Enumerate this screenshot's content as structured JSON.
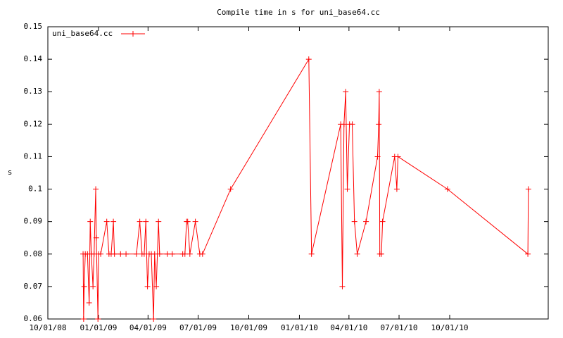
{
  "chart_data": {
    "type": "line",
    "title": "Compile time in s for uni_base64.cc",
    "ylabel": "s",
    "x": [
      "2008-12-04",
      "2008-12-05",
      "2008-12-06",
      "2008-12-08",
      "2008-12-12",
      "2008-12-15",
      "2008-12-17",
      "2008-12-19",
      "2008-12-22",
      "2008-12-24",
      "2008-12-27",
      "2008-12-28",
      "2008-12-31",
      "2009-01-01",
      "2009-01-05",
      "2009-01-16",
      "2009-01-20",
      "2009-01-24",
      "2009-01-28",
      "2009-01-30",
      "2009-02-10",
      "2009-02-20",
      "2009-03-11",
      "2009-03-17",
      "2009-03-21",
      "2009-03-25",
      "2009-03-28",
      "2009-03-31",
      "2009-04-03",
      "2009-04-07",
      "2009-04-11",
      "2009-04-13",
      "2009-04-16",
      "2009-04-20",
      "2009-04-22",
      "2009-05-06",
      "2009-05-15",
      "2009-06-03",
      "2009-06-07",
      "2009-06-10",
      "2009-06-12",
      "2009-06-16",
      "2009-06-26",
      "2009-07-04",
      "2009-07-09",
      "2009-08-29",
      "2010-01-18",
      "2010-01-23",
      "2010-03-17",
      "2010-03-20",
      "2010-03-23",
      "2010-03-26",
      "2010-03-29",
      "2010-04-02",
      "2010-04-07",
      "2010-04-11",
      "2010-04-16",
      "2010-05-02",
      "2010-05-23",
      "2010-05-25",
      "2010-05-26",
      "2010-05-27",
      "2010-05-30",
      "2010-06-01",
      "2010-06-23",
      "2010-06-27",
      "2010-06-29",
      "2010-09-27",
      "2011-02-20",
      "2011-02-21"
    ],
    "series": [
      {
        "name": "uni_base64.cc",
        "color": "#ff0000",
        "values": [
          0.08,
          0.06,
          0.07,
          0.08,
          0.08,
          0.065,
          0.09,
          0.08,
          0.07,
          0.08,
          0.1,
          0.085,
          0.06,
          0.08,
          0.08,
          0.09,
          0.08,
          0.08,
          0.09,
          0.08,
          0.08,
          0.08,
          0.08,
          0.09,
          0.08,
          0.08,
          0.09,
          0.07,
          0.08,
          0.08,
          0.06,
          0.08,
          0.07,
          0.09,
          0.08,
          0.08,
          0.08,
          0.08,
          0.08,
          0.09,
          0.09,
          0.08,
          0.09,
          0.08,
          0.08,
          0.1,
          0.14,
          0.08,
          0.12,
          0.07,
          0.12,
          0.13,
          0.1,
          0.12,
          0.12,
          0.09,
          0.08,
          0.09,
          0.11,
          0.12,
          0.13,
          0.08,
          0.08,
          0.09,
          0.11,
          0.1,
          0.11,
          0.1,
          0.08,
          0.1
        ]
      }
    ],
    "xlim": [
      "2008-10-01",
      "2011-03-29"
    ],
    "xticks": [
      {
        "value": "2008-10-01",
        "label": "10/01/08"
      },
      {
        "value": "2009-01-01",
        "label": "01/01/09"
      },
      {
        "value": "2009-04-01",
        "label": "04/01/09"
      },
      {
        "value": "2009-07-01",
        "label": "07/01/09"
      },
      {
        "value": "2009-10-01",
        "label": "10/01/09"
      },
      {
        "value": "2010-01-01",
        "label": "01/01/10"
      },
      {
        "value": "2010-04-01",
        "label": "04/01/10"
      },
      {
        "value": "2010-07-01",
        "label": "07/01/10"
      },
      {
        "value": "2010-10-01",
        "label": "10/01/10"
      }
    ],
    "ylim": [
      0.06,
      0.15
    ],
    "yticks": [
      0.06,
      0.07,
      0.08,
      0.09,
      0.1,
      0.11,
      0.12,
      0.13,
      0.14,
      0.15
    ],
    "legend": "top-left"
  }
}
